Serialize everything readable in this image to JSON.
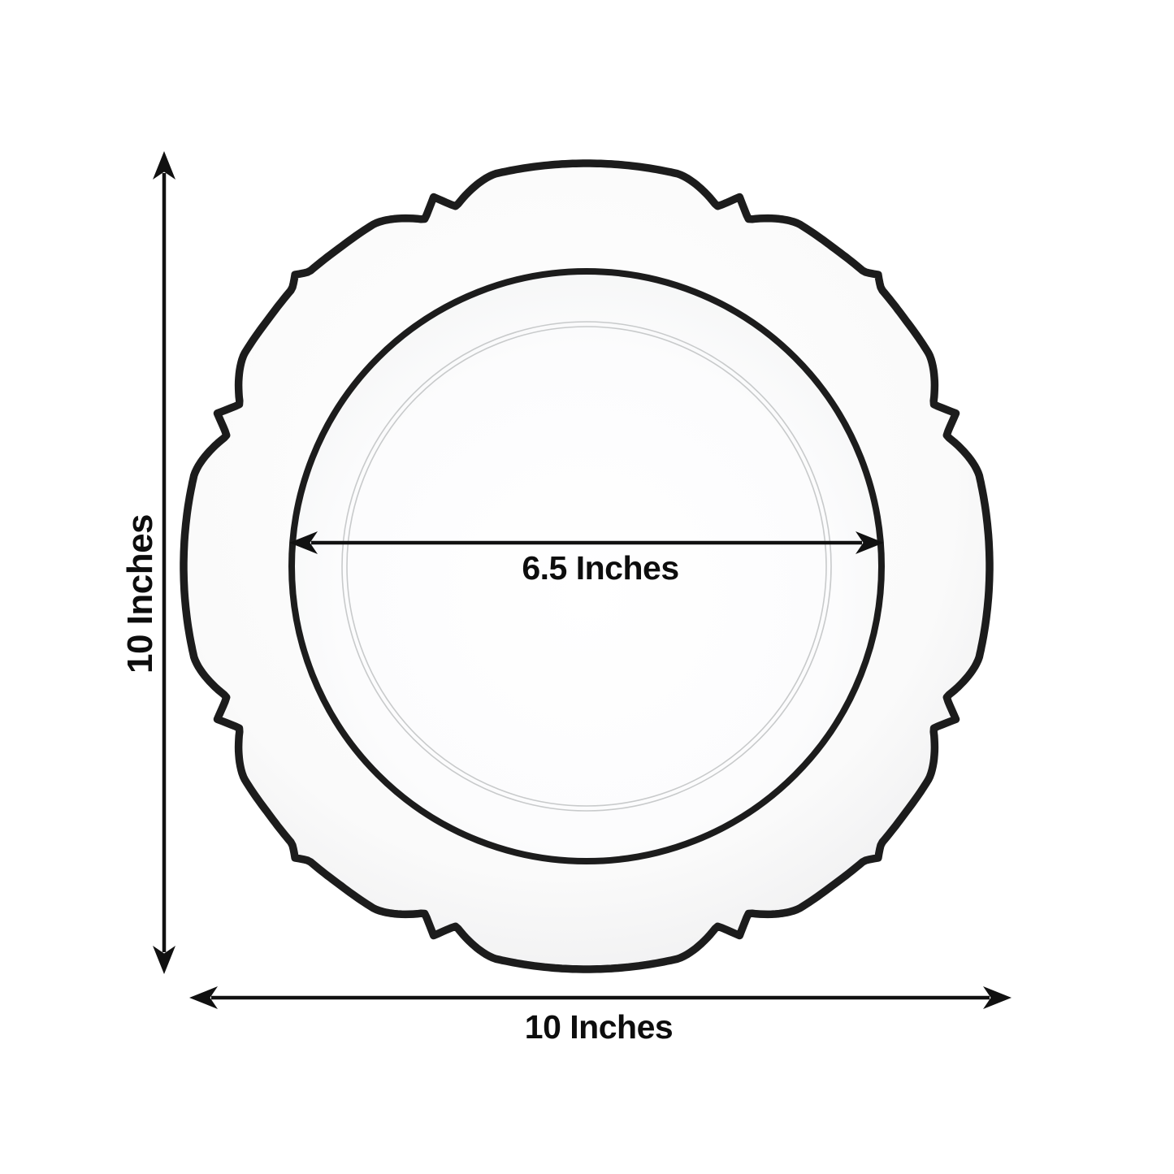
{
  "diagram": {
    "dimensions": {
      "overall_height_label": "10 Inches",
      "overall_width_label": "10 Inches",
      "inner_diameter_label": "6.5 Inches"
    },
    "colors": {
      "background": "#ffffff",
      "plate_trim": "#1c1c1c",
      "plate_rim_fill": "#fafafa",
      "plate_inner_fill": "#fdfdfd",
      "emboss_line": "#c8cacb",
      "dimension_line": "#111111",
      "text": "#0d0d0d"
    }
  }
}
